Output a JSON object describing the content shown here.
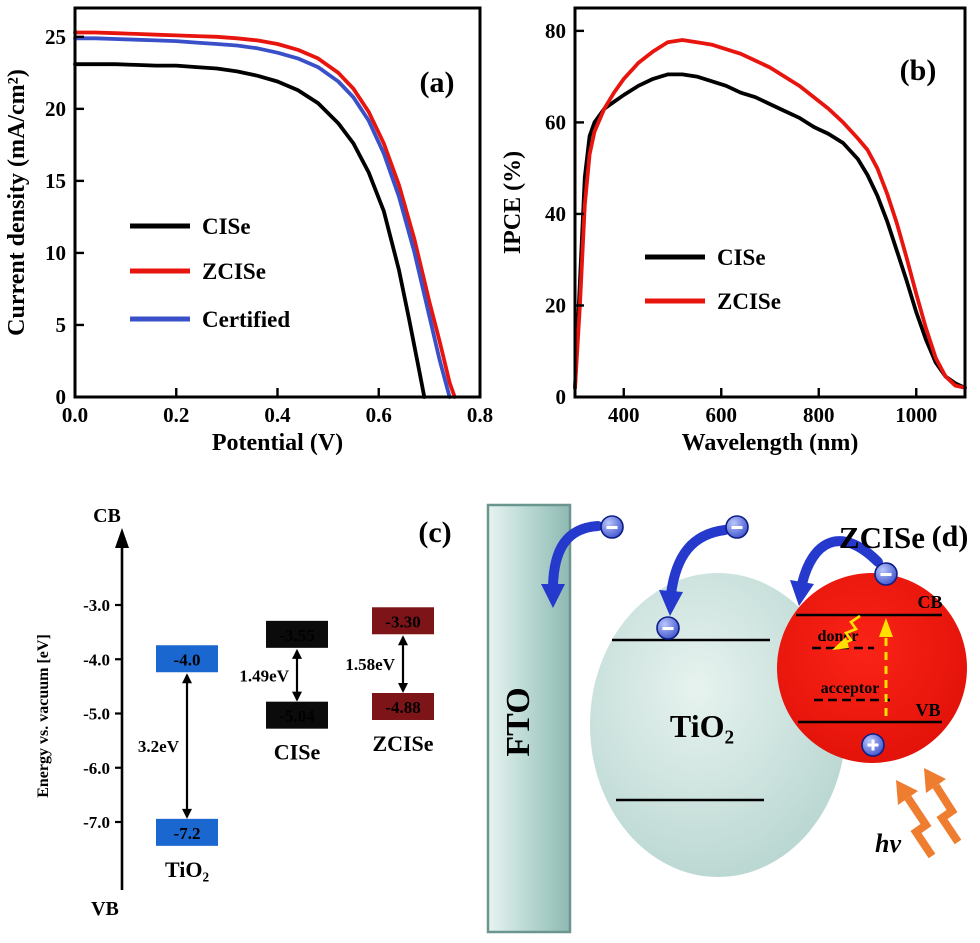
{
  "chart_data": [
    {
      "id": "jv-curves",
      "type": "line",
      "panel_tag": "(a)",
      "title": "",
      "xlabel": "Potential (V)",
      "ylabel": "Current density (mA/cm²)",
      "xlim": [
        0.0,
        0.8
      ],
      "ylim": [
        0,
        27
      ],
      "grid": false,
      "legend_position": "center-left",
      "xticks": [
        0.0,
        0.2,
        0.4,
        0.6,
        0.8
      ],
      "xtick_labels": [
        "0.0",
        "0.2",
        "0.4",
        "0.6",
        "0.8"
      ],
      "yticks": [
        0,
        5,
        10,
        15,
        20,
        25
      ],
      "ytick_labels": [
        "0",
        "5",
        "10",
        "15",
        "20",
        "25"
      ],
      "series": [
        {
          "name": "CISe",
          "color": "#000000",
          "x": [
            0.0,
            0.04,
            0.08,
            0.12,
            0.16,
            0.2,
            0.24,
            0.28,
            0.32,
            0.36,
            0.4,
            0.44,
            0.48,
            0.52,
            0.55,
            0.58,
            0.61,
            0.64,
            0.66,
            0.68,
            0.69
          ],
          "y": [
            23.1,
            23.1,
            23.1,
            23.05,
            23.0,
            23.0,
            22.9,
            22.8,
            22.6,
            22.3,
            21.9,
            21.3,
            20.4,
            19.0,
            17.6,
            15.6,
            12.9,
            8.8,
            5.4,
            1.8,
            0.0
          ]
        },
        {
          "name": "ZCISe",
          "color": "#e8150f",
          "x": [
            0.0,
            0.04,
            0.08,
            0.12,
            0.16,
            0.2,
            0.24,
            0.28,
            0.32,
            0.36,
            0.4,
            0.44,
            0.48,
            0.52,
            0.55,
            0.58,
            0.61,
            0.64,
            0.67,
            0.7,
            0.72,
            0.74,
            0.75
          ],
          "y": [
            25.3,
            25.3,
            25.25,
            25.2,
            25.15,
            25.1,
            25.05,
            25.0,
            24.9,
            24.75,
            24.5,
            24.1,
            23.5,
            22.5,
            21.4,
            19.8,
            17.6,
            14.7,
            11.0,
            6.6,
            3.9,
            1.0,
            0.0
          ]
        },
        {
          "name": "Certified",
          "color": "#3a50c8",
          "x": [
            0.0,
            0.04,
            0.08,
            0.12,
            0.16,
            0.2,
            0.24,
            0.28,
            0.32,
            0.36,
            0.4,
            0.44,
            0.48,
            0.52,
            0.55,
            0.58,
            0.61,
            0.64,
            0.67,
            0.7,
            0.72,
            0.74
          ],
          "y": [
            24.9,
            24.9,
            24.85,
            24.8,
            24.75,
            24.7,
            24.6,
            24.5,
            24.4,
            24.2,
            23.9,
            23.5,
            22.9,
            21.9,
            20.8,
            19.2,
            16.9,
            13.9,
            10.1,
            5.6,
            2.6,
            0.0
          ]
        }
      ]
    },
    {
      "id": "ipce-spectra",
      "type": "line",
      "panel_tag": "(b)",
      "title": "",
      "xlabel": "Wavelength (nm)",
      "ylabel": "IPCE (%)",
      "xlim": [
        300,
        1100
      ],
      "ylim": [
        0,
        85
      ],
      "grid": false,
      "legend_position": "center-left",
      "xticks": [
        400,
        600,
        800,
        1000
      ],
      "xtick_labels": [
        "400",
        "600",
        "800",
        "1000"
      ],
      "yticks": [
        0,
        20,
        40,
        60,
        80
      ],
      "ytick_labels": [
        "0",
        "20",
        "40",
        "60",
        "80"
      ],
      "series": [
        {
          "name": "CISe",
          "color": "#000000",
          "x": [
            300,
            310,
            320,
            330,
            340,
            360,
            380,
            400,
            430,
            460,
            490,
            520,
            550,
            580,
            610,
            640,
            670,
            700,
            730,
            760,
            790,
            820,
            850,
            880,
            900,
            920,
            940,
            960,
            980,
            1000,
            1020,
            1040,
            1060,
            1080,
            1100
          ],
          "y": [
            2,
            25,
            48,
            57,
            60,
            63,
            64.5,
            66,
            68,
            69.5,
            70.5,
            70.5,
            70,
            69,
            68,
            66.5,
            65.5,
            64,
            62.5,
            61,
            59,
            57.5,
            55.5,
            52,
            48.5,
            44,
            38.5,
            32,
            25.5,
            18.5,
            12.5,
            7.5,
            4.5,
            3,
            2
          ]
        },
        {
          "name": "ZCISe",
          "color": "#e8150f",
          "x": [
            300,
            310,
            320,
            330,
            340,
            360,
            380,
            400,
            430,
            460,
            490,
            520,
            550,
            580,
            610,
            640,
            670,
            700,
            730,
            760,
            790,
            820,
            850,
            880,
            900,
            920,
            940,
            960,
            980,
            1000,
            1020,
            1040,
            1060,
            1080,
            1100
          ],
          "y": [
            2,
            20,
            42,
            53,
            58,
            63,
            66.5,
            69.5,
            73,
            75.5,
            77.5,
            78,
            77.5,
            77,
            76,
            75,
            73.5,
            72,
            70,
            68,
            65.5,
            63,
            60,
            56.5,
            54,
            50,
            44.5,
            38,
            30.5,
            22.5,
            15,
            8.5,
            4.5,
            2.5,
            2
          ]
        }
      ]
    }
  ],
  "energy_diagram": {
    "panel_tag": "(c)",
    "axis_label": "Energy vs. vacuum [eV]",
    "cb_label": "CB",
    "vb_label": "VB",
    "tick_values": [
      -3.0,
      -4.0,
      -5.0,
      -6.0,
      -7.0
    ],
    "tick_labels": [
      "-3.0",
      "-4.0",
      "-5.0",
      "-6.0",
      "-7.0"
    ],
    "materials": [
      {
        "name": "TiO₂",
        "cb": -4.0,
        "vb": -7.2,
        "cb_label": "-4.0",
        "vb_label": "-7.2",
        "gap_label": "3.2eV",
        "box_color": "#1a67cf",
        "text_color": "#ffffff",
        "name_color": "#000000"
      },
      {
        "name": "CISe",
        "cb": -3.55,
        "vb": -5.04,
        "cb_label": "-3.55",
        "vb_label": "-5.04",
        "gap_label": "1.49eV",
        "box_color": "#0b0b0b",
        "text_color": "#ffffff",
        "name_color": "#000000"
      },
      {
        "name": "ZCISe",
        "cb": -3.3,
        "vb": -4.88,
        "cb_label": "-3.30",
        "vb_label": "-4.88",
        "gap_label": "1.58eV",
        "box_color": "#7d1518",
        "text_color": "#ffffff",
        "name_color": "#8b1a1a"
      }
    ]
  },
  "schematic": {
    "panel_tag": "(d)",
    "fto_label": "FTO",
    "tio2_label": "TiO₂",
    "zcise_label": "ZCISe",
    "cb_label": "CB",
    "vb_label": "VB",
    "donor_label": "donor",
    "acceptor_label": "acceptor",
    "photon_label": "hv",
    "colors": {
      "electron_arrow_blue": "#2539cc",
      "zcise_red": "#e8150f",
      "fto_teal": "#b7d6d2",
      "photon_orange": "#ee7d2f",
      "excitation_yellow": "#ffe000"
    }
  }
}
